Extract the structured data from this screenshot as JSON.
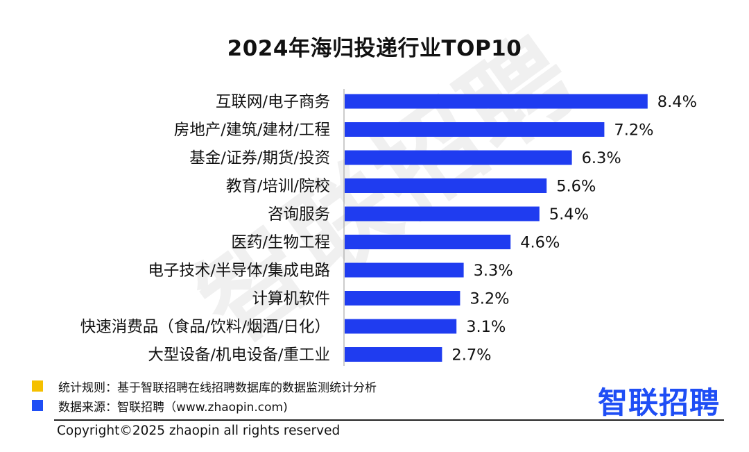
{
  "chart_data": {
    "type": "bar",
    "orientation": "horizontal",
    "title": "2024年海归投递行业TOP10",
    "categories": [
      "互联网/电子商务",
      "房地产/建筑/建材/工程",
      "基金/证券/期货/投资",
      "教育/培训/院校",
      "咨询服务",
      "医药/生物工程",
      "电子技术/半导体/集成电路",
      "计算机软件",
      "快速消费品（食品/饮料/烟酒/日化）",
      "大型设备/机电设备/重工业"
    ],
    "values": [
      8.4,
      7.2,
      6.3,
      5.6,
      5.4,
      4.6,
      3.3,
      3.2,
      3.1,
      2.7
    ],
    "value_labels": [
      "8.4%",
      "7.2%",
      "6.3%",
      "5.6%",
      "5.4%",
      "4.6%",
      "3.3%",
      "3.2%",
      "3.1%",
      "2.7%"
    ],
    "xlim": [
      0,
      9
    ],
    "grid": false,
    "bar_color": "#1f3cf0"
  },
  "watermark": "智联招聘",
  "legend": {
    "rule": {
      "text": "统计规则：基于智联招聘在线招聘数据库的数据监测统计分析",
      "color": "#f5c000"
    },
    "source": {
      "text": "数据来源：智联招聘（www.zhaopin.com)",
      "color": "#1f4ef5"
    }
  },
  "brand": {
    "logo_text": "智联招聘",
    "color": "#1f4ef5"
  },
  "footer": {
    "copyright": "Copyright©2025 zhaopin all rights reserved"
  }
}
